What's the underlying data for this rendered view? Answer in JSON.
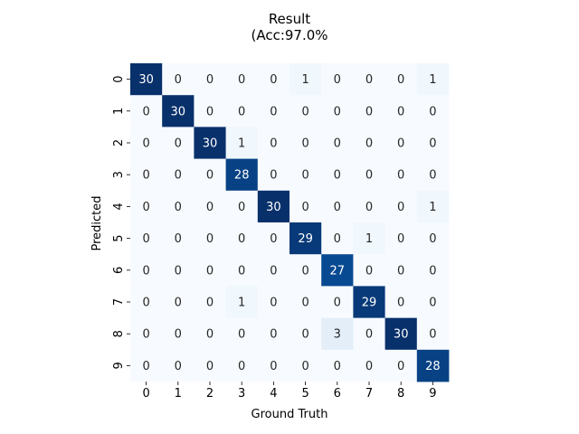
{
  "chart_data": {
    "type": "heatmap",
    "title": [
      "Result",
      "(Acc:97.0%"
    ],
    "xlabel": "Ground Truth",
    "ylabel": "Predicted",
    "x_tick_labels": [
      "0",
      "1",
      "2",
      "3",
      "4",
      "5",
      "6",
      "7",
      "8",
      "9"
    ],
    "y_tick_labels": [
      "0",
      "1",
      "2",
      "3",
      "4",
      "5",
      "6",
      "7",
      "8",
      "9"
    ],
    "colormap": "Blues",
    "value_range": [
      0,
      30
    ],
    "colorbar": false,
    "matrix": [
      [
        30,
        0,
        0,
        0,
        0,
        1,
        0,
        0,
        0,
        1
      ],
      [
        0,
        30,
        0,
        0,
        0,
        0,
        0,
        0,
        0,
        0
      ],
      [
        0,
        0,
        30,
        1,
        0,
        0,
        0,
        0,
        0,
        0
      ],
      [
        0,
        0,
        0,
        28,
        0,
        0,
        0,
        0,
        0,
        0
      ],
      [
        0,
        0,
        0,
        0,
        30,
        0,
        0,
        0,
        0,
        1
      ],
      [
        0,
        0,
        0,
        0,
        0,
        29,
        0,
        1,
        0,
        0
      ],
      [
        0,
        0,
        0,
        0,
        0,
        0,
        27,
        0,
        0,
        0
      ],
      [
        0,
        0,
        0,
        1,
        0,
        0,
        0,
        29,
        0,
        0
      ],
      [
        0,
        0,
        0,
        0,
        0,
        0,
        3,
        0,
        30,
        0
      ],
      [
        0,
        0,
        0,
        0,
        0,
        0,
        0,
        0,
        0,
        28
      ]
    ]
  }
}
